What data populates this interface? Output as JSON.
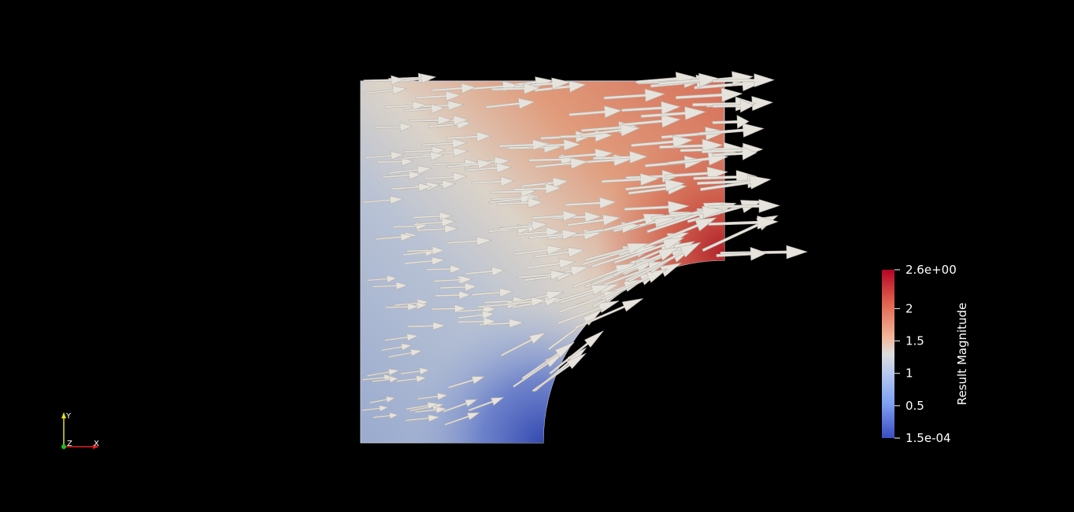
{
  "colorbar": {
    "title": "Result Magnitude",
    "range": [
      0.00015,
      2.6
    ],
    "ticks": [
      {
        "label": "2.6e+00",
        "value": 2.6
      },
      {
        "label": "2",
        "value": 2.0
      },
      {
        "label": "1.5",
        "value": 1.5
      },
      {
        "label": "1",
        "value": 1.0
      },
      {
        "label": "0.5",
        "value": 0.5
      },
      {
        "label": "1.5e-04",
        "value": 0.00015
      }
    ],
    "colormap": "Cool to Warm",
    "colors": {
      "low": "#3b4cc0",
      "mid": "#dddddd",
      "high": "#b40426"
    }
  },
  "orientation_axes": {
    "x_label": "X",
    "y_label": "Y",
    "z_label": "Z",
    "colors": {
      "x": "#e02020",
      "y": "#e0e020",
      "z": "#20c020"
    }
  },
  "scene": {
    "background": "#000000",
    "glyph_color": "#e6e2dc",
    "mesh": "quarter plate with circular hole",
    "field": "Result Magnitude"
  }
}
